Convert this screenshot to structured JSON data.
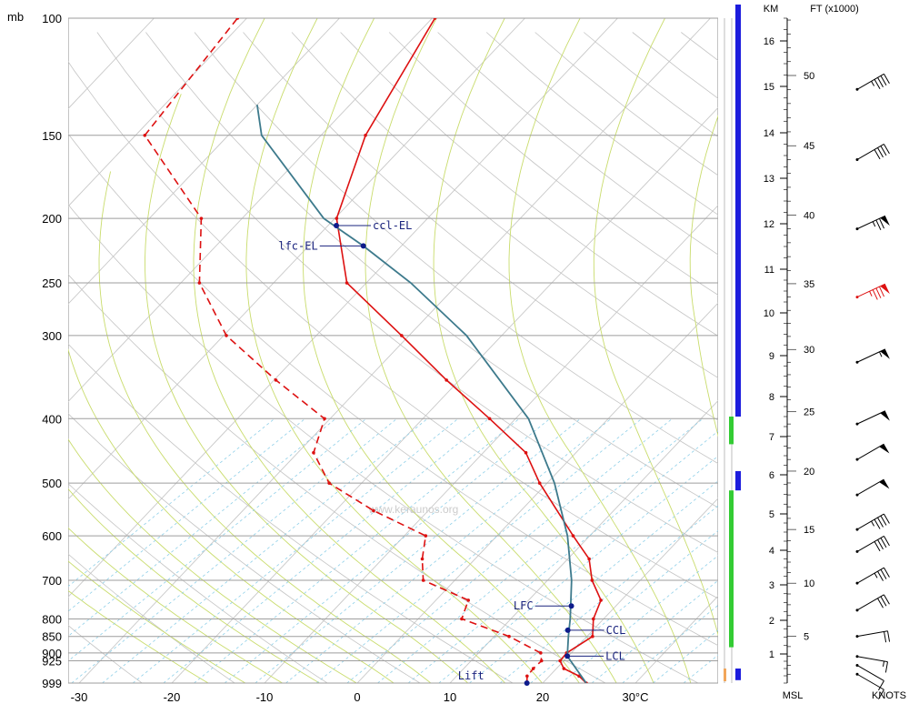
{
  "chart_data": {
    "type": "skew-t log-p sounding",
    "pressure_unit": "mb",
    "temperature_unit": "°C",
    "height_unit_km": "KM",
    "height_unit_ft": "FT (x1000)",
    "msl_label": "MSL",
    "wind_unit": "KNOTS",
    "watermark": "www.keraunos.org",
    "pressure_ticks": [
      100,
      150,
      200,
      250,
      300,
      400,
      500,
      600,
      700,
      800,
      850,
      900,
      925,
      999
    ],
    "temperature_ticks": [
      {
        "value": -30,
        "label": "-30"
      },
      {
        "value": -20,
        "label": "-20"
      },
      {
        "value": -10,
        "label": "-10"
      },
      {
        "value": 0,
        "label": "0"
      },
      {
        "value": 10,
        "label": "10"
      },
      {
        "value": 20,
        "label": "20"
      },
      {
        "value": 30,
        "label": "30°C"
      }
    ],
    "km_ticks": [
      1,
      2,
      3,
      4,
      5,
      6,
      7,
      8,
      9,
      10,
      11,
      12,
      13,
      14,
      15,
      16
    ],
    "ft_ticks": [
      5,
      10,
      15,
      20,
      25,
      30,
      35,
      40,
      45,
      50
    ],
    "series": [
      {
        "name": "temperature",
        "color": "#dd1111",
        "dash": false,
        "points": [
          {
            "p": 999,
            "t": 24.7
          },
          {
            "p": 975,
            "t": 23.2
          },
          {
            "p": 950,
            "t": 20.8
          },
          {
            "p": 925,
            "t": 19.6
          },
          {
            "p": 900,
            "t": 19.5
          },
          {
            "p": 850,
            "t": 20.6
          },
          {
            "p": 800,
            "t": 18.9
          },
          {
            "p": 750,
            "t": 17.8
          },
          {
            "p": 700,
            "t": 14.8
          },
          {
            "p": 650,
            "t": 12.3
          },
          {
            "p": 600,
            "t": 8.2
          },
          {
            "p": 500,
            "t": -0.8
          },
          {
            "p": 450,
            "t": -5.4
          },
          {
            "p": 400,
            "t": -12.8
          },
          {
            "p": 350,
            "t": -21.4
          },
          {
            "p": 300,
            "t": -30.8
          },
          {
            "p": 250,
            "t": -42.1
          },
          {
            "p": 200,
            "t": -49.8
          },
          {
            "p": 150,
            "t": -55.2
          },
          {
            "p": 100,
            "t": -59.7
          }
        ]
      },
      {
        "name": "dewpoint",
        "color": "#dd1111",
        "dash": true,
        "points": [
          {
            "p": 999,
            "t": 18.3
          },
          {
            "p": 975,
            "t": 17.6
          },
          {
            "p": 950,
            "t": 17.5
          },
          {
            "p": 925,
            "t": 17.6
          },
          {
            "p": 900,
            "t": 16.7
          },
          {
            "p": 850,
            "t": 11.6
          },
          {
            "p": 800,
            "t": 4.7
          },
          {
            "p": 750,
            "t": 3.5
          },
          {
            "p": 700,
            "t": -3.4
          },
          {
            "p": 650,
            "t": -5.7
          },
          {
            "p": 600,
            "t": -7.7
          },
          {
            "p": 550,
            "t": -15.9
          },
          {
            "p": 500,
            "t": -23.5
          },
          {
            "p": 450,
            "t": -28.3
          },
          {
            "p": 400,
            "t": -30.6
          },
          {
            "p": 350,
            "t": -39.8
          },
          {
            "p": 300,
            "t": -49.7
          },
          {
            "p": 250,
            "t": -58.0
          },
          {
            "p": 200,
            "t": -64.4
          },
          {
            "p": 150,
            "t": -79.0
          },
          {
            "p": 100,
            "t": -81.0
          }
        ]
      },
      {
        "name": "parcel",
        "color": "#3d7a8c",
        "dash": false,
        "points": [
          {
            "p": 999,
            "t": 24.7
          },
          {
            "p": 910,
            "t": 19.9
          },
          {
            "p": 850,
            "t": 18.0
          },
          {
            "p": 800,
            "t": 16.4
          },
          {
            "p": 700,
            "t": 12.6
          },
          {
            "p": 600,
            "t": 7.6
          },
          {
            "p": 500,
            "t": 0.8
          },
          {
            "p": 400,
            "t": -8.6
          },
          {
            "p": 300,
            "t": -23.8
          },
          {
            "p": 250,
            "t": -35.2
          },
          {
            "p": 220,
            "t": -44.1
          },
          {
            "p": 200,
            "t": -51.2
          },
          {
            "p": 150,
            "t": -66.4
          },
          {
            "p": 135,
            "t": -70.0
          }
        ]
      }
    ],
    "levels": [
      {
        "name": "ccl-EL",
        "p": 205,
        "t": -49.1
      },
      {
        "name": "lfc-EL",
        "p": 220,
        "t": -44.1
      },
      {
        "name": "LFC",
        "p": 765,
        "t": 15.2
      },
      {
        "name": "CCL",
        "p": 832,
        "t": 17.3
      },
      {
        "name": "LCL",
        "p": 910,
        "t": 19.9
      },
      {
        "name": "Lift",
        "p": 999,
        "t": 18.3
      }
    ],
    "wind_barbs": [
      {
        "ft": 49,
        "dir": 240,
        "speed": 45,
        "color": "#000000"
      },
      {
        "ft": 44,
        "dir": 240,
        "speed": 40,
        "color": "#000000"
      },
      {
        "ft": 39,
        "dir": 245,
        "speed": 75,
        "color": "#000000"
      },
      {
        "ft": 34,
        "dir": 245,
        "speed": 85,
        "color": "#dd1111"
      },
      {
        "ft": 29,
        "dir": 245,
        "speed": 55,
        "color": "#000000"
      },
      {
        "ft": 24,
        "dir": 245,
        "speed": 50,
        "color": "#000000"
      },
      {
        "ft": 21,
        "dir": 240,
        "speed": 50,
        "color": "#000000"
      },
      {
        "ft": 18,
        "dir": 240,
        "speed": 50,
        "color": "#000000"
      },
      {
        "ft": 15,
        "dir": 240,
        "speed": 45,
        "color": "#000000"
      },
      {
        "ft": 13,
        "dir": 240,
        "speed": 40,
        "color": "#000000"
      },
      {
        "ft": 10,
        "dir": 240,
        "speed": 35,
        "color": "#000000"
      },
      {
        "ft": 7.5,
        "dir": 240,
        "speed": 30,
        "color": "#000000"
      },
      {
        "ft": 5,
        "dir": 260,
        "speed": 20,
        "color": "#000000"
      },
      {
        "ft": 3,
        "dir": 280,
        "speed": 15,
        "color": "#000000"
      },
      {
        "ft": 2,
        "dir": 300,
        "speed": 10,
        "color": "#000000"
      },
      {
        "ft": 1,
        "dir": 300,
        "speed": 10,
        "color": "#000000"
      }
    ]
  }
}
